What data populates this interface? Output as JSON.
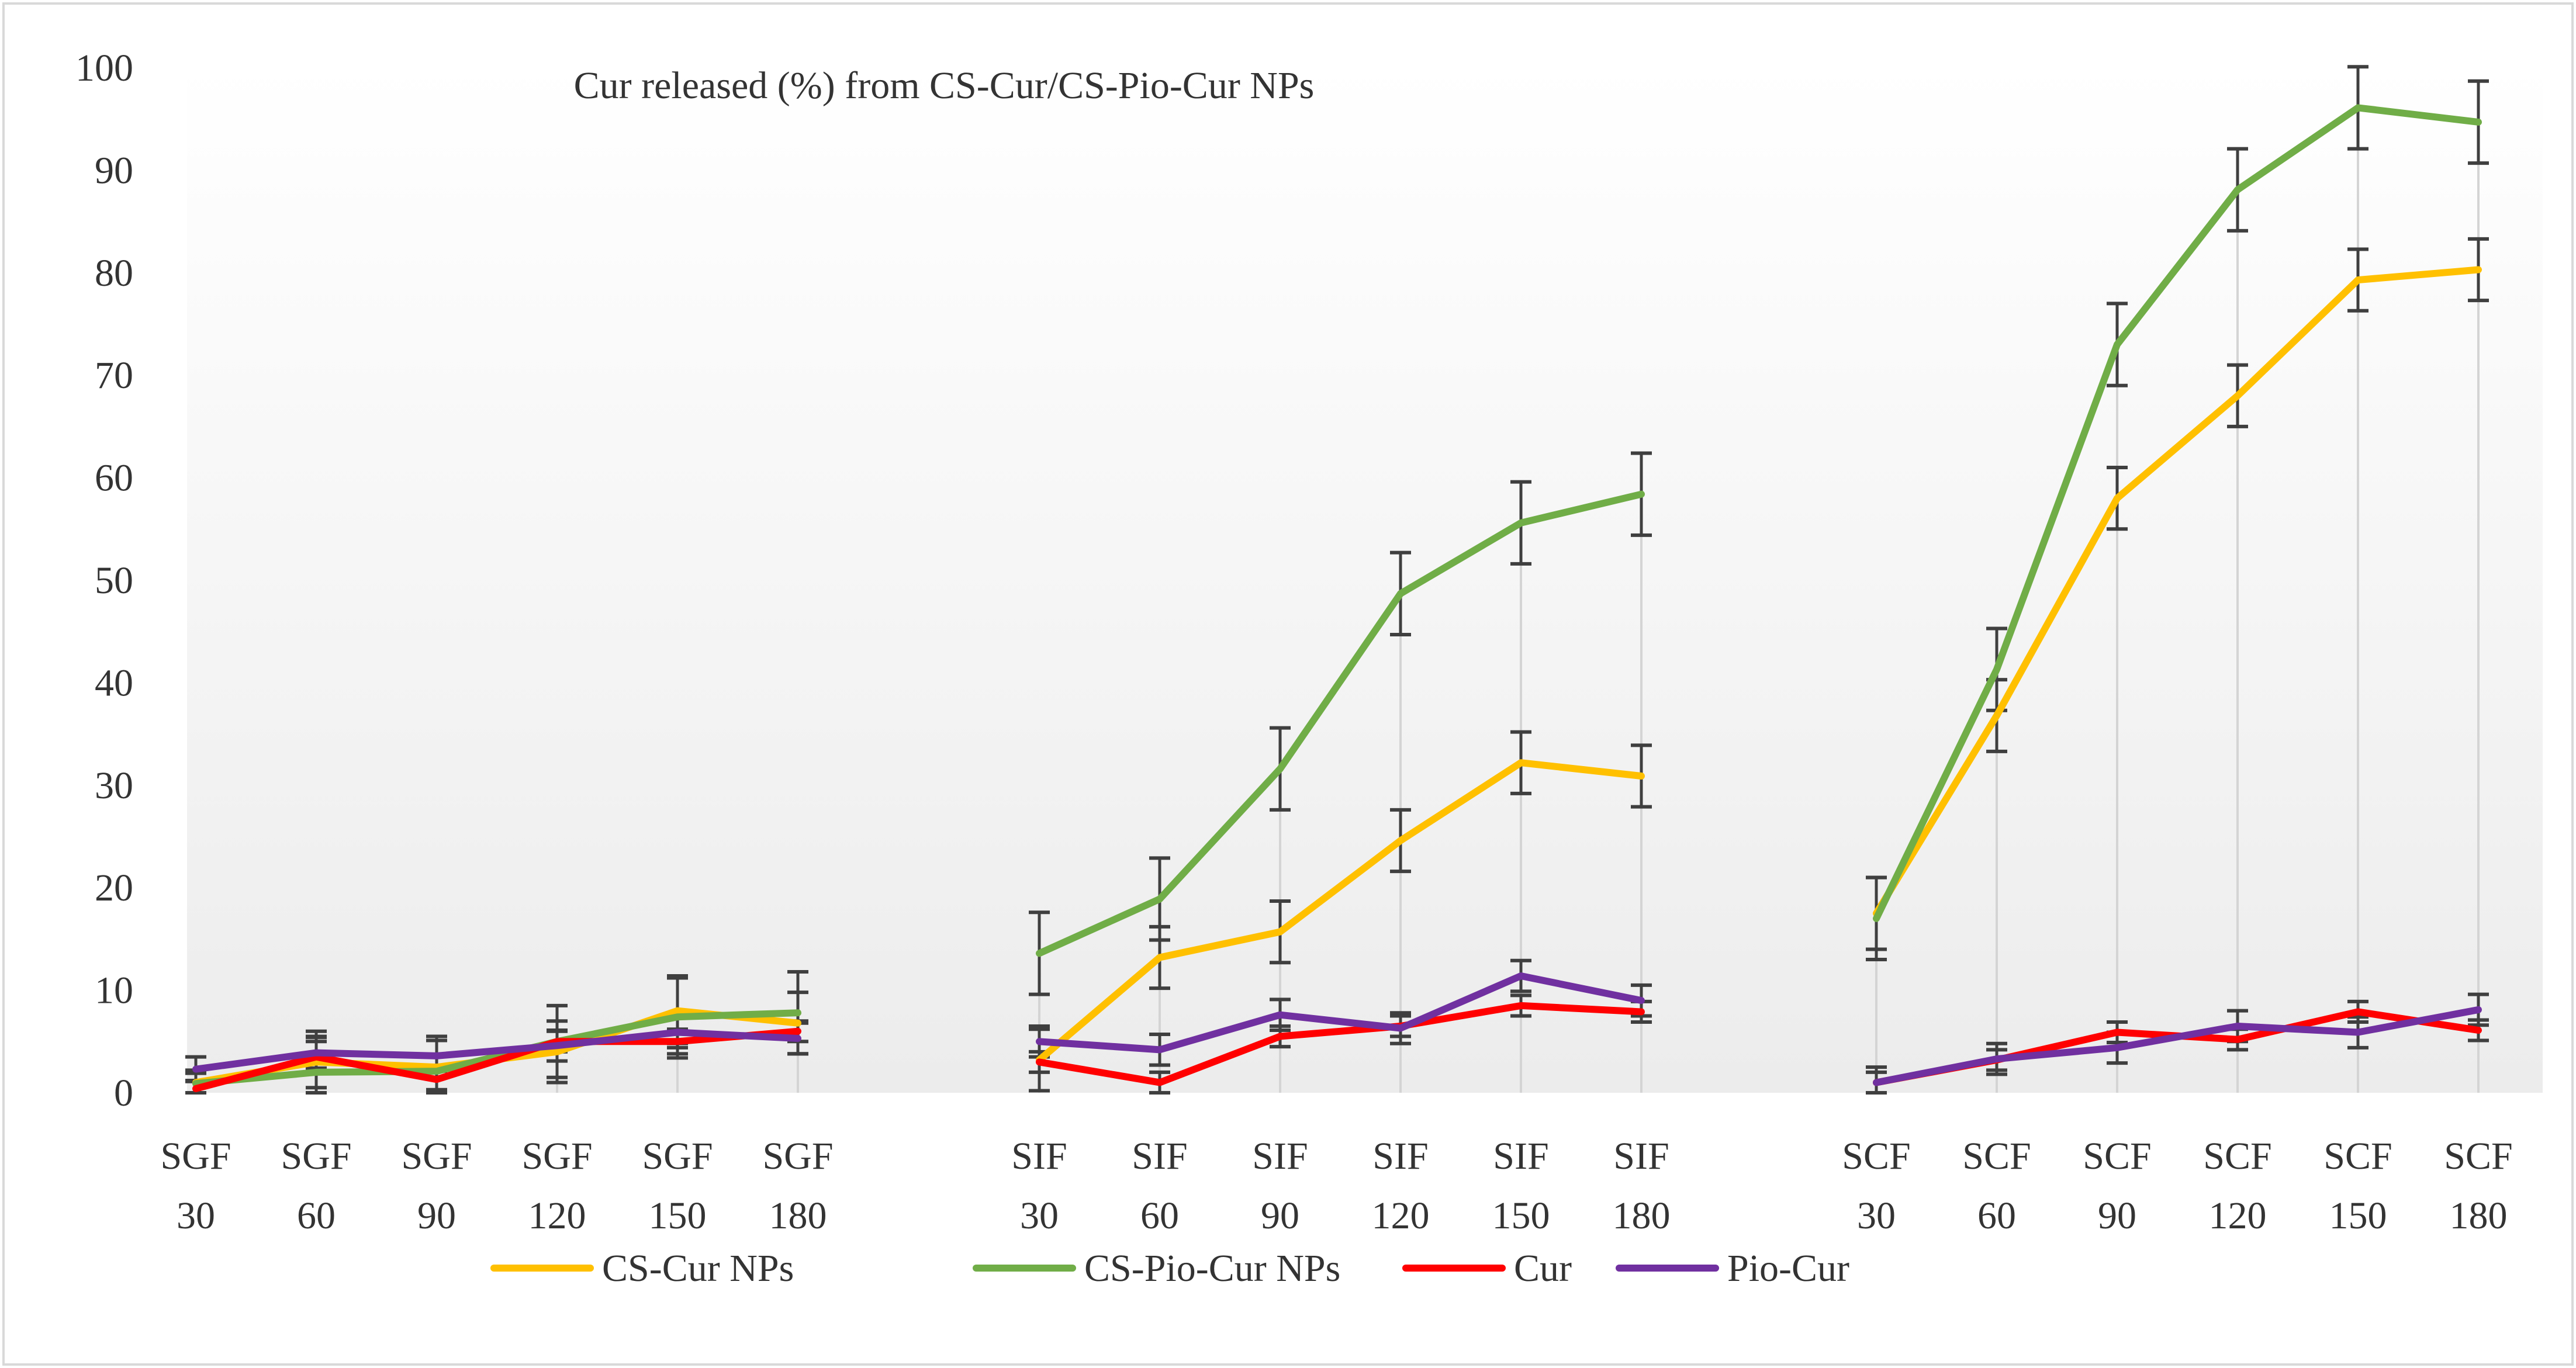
{
  "chart_data": {
    "type": "line",
    "title": "Cur released (%) from CS-Cur/CS-Pio-Cur NPs",
    "xlabel": "",
    "ylabel": "",
    "ylim": [
      0,
      100
    ],
    "ytick_step": 10,
    "grid": false,
    "legend_position": "bottom",
    "groups": [
      {
        "medium": "SGF",
        "times": [
          "30",
          "60",
          "90",
          "120",
          "150",
          "180"
        ]
      },
      {
        "medium": "SIF",
        "times": [
          "30",
          "60",
          "90",
          "120",
          "150",
          "180"
        ]
      },
      {
        "medium": "SCF",
        "times": [
          "30",
          "60",
          "90",
          "120",
          "150",
          "180"
        ]
      }
    ],
    "series": [
      {
        "name": "CS-Cur NPs",
        "color": "#FFC000",
        "values": [
          [
            1.0,
            3.0,
            2.5,
            4.0,
            8.0,
            6.8
          ],
          [
            3.2,
            13.2,
            15.7,
            24.6,
            32.2,
            30.9
          ],
          [
            17.5,
            36.8,
            58.0,
            68.0,
            79.3,
            80.3
          ]
        ],
        "errors": [
          [
            1.2,
            2.5,
            3.0,
            3.0,
            3.2,
            3.0
          ],
          [
            3.0,
            3.0,
            3.0,
            3.0,
            3.0,
            3.0
          ],
          [
            3.5,
            3.5,
            3.0,
            3.0,
            3.0,
            3.0
          ]
        ]
      },
      {
        "name": "CS-Pio-Cur NPs",
        "color": "#70AD47",
        "values": [
          [
            0.9,
            2.0,
            2.1,
            5.0,
            7.4,
            7.8
          ],
          [
            13.6,
            18.9,
            31.6,
            48.7,
            55.6,
            58.4
          ],
          [
            17.0,
            41.3,
            73.0,
            88.1,
            96.1,
            94.7
          ]
        ],
        "errors": [
          [
            1.0,
            4.0,
            3.0,
            3.5,
            4.0,
            4.0
          ],
          [
            4.0,
            4.0,
            4.0,
            4.0,
            4.0,
            4.0
          ],
          [
            4.0,
            4.0,
            4.0,
            4.0,
            4.0,
            4.0
          ]
        ]
      },
      {
        "name": "Cur",
        "color": "#FF0000",
        "values": [
          [
            0.4,
            3.5,
            1.3,
            5.0,
            5.0,
            6.0
          ],
          [
            3.0,
            1.0,
            5.5,
            6.5,
            8.5,
            7.9
          ],
          [
            1.0,
            3.2,
            5.9,
            5.2,
            7.9,
            6.1
          ]
        ],
        "errors": [
          [
            0.8,
            1.5,
            1.0,
            1.0,
            1.2,
            1.0
          ],
          [
            1.0,
            1.0,
            1.0,
            1.0,
            1.0,
            1.0
          ],
          [
            1.0,
            1.0,
            1.0,
            1.0,
            1.0,
            1.0
          ]
        ]
      },
      {
        "name": "Pio-Cur",
        "color": "#7030A0",
        "values": [
          [
            2.3,
            3.9,
            3.6,
            4.6,
            5.9,
            5.3
          ],
          [
            5.0,
            4.2,
            7.6,
            6.3,
            11.4,
            9.0
          ],
          [
            1.0,
            3.3,
            4.4,
            6.5,
            5.9,
            8.1
          ]
        ],
        "errors": [
          [
            1.2,
            1.5,
            1.5,
            1.5,
            1.5,
            1.5
          ],
          [
            1.5,
            1.5,
            1.5,
            1.5,
            1.5,
            1.5
          ],
          [
            1.5,
            1.5,
            1.5,
            1.5,
            1.5,
            1.5
          ]
        ]
      }
    ]
  }
}
